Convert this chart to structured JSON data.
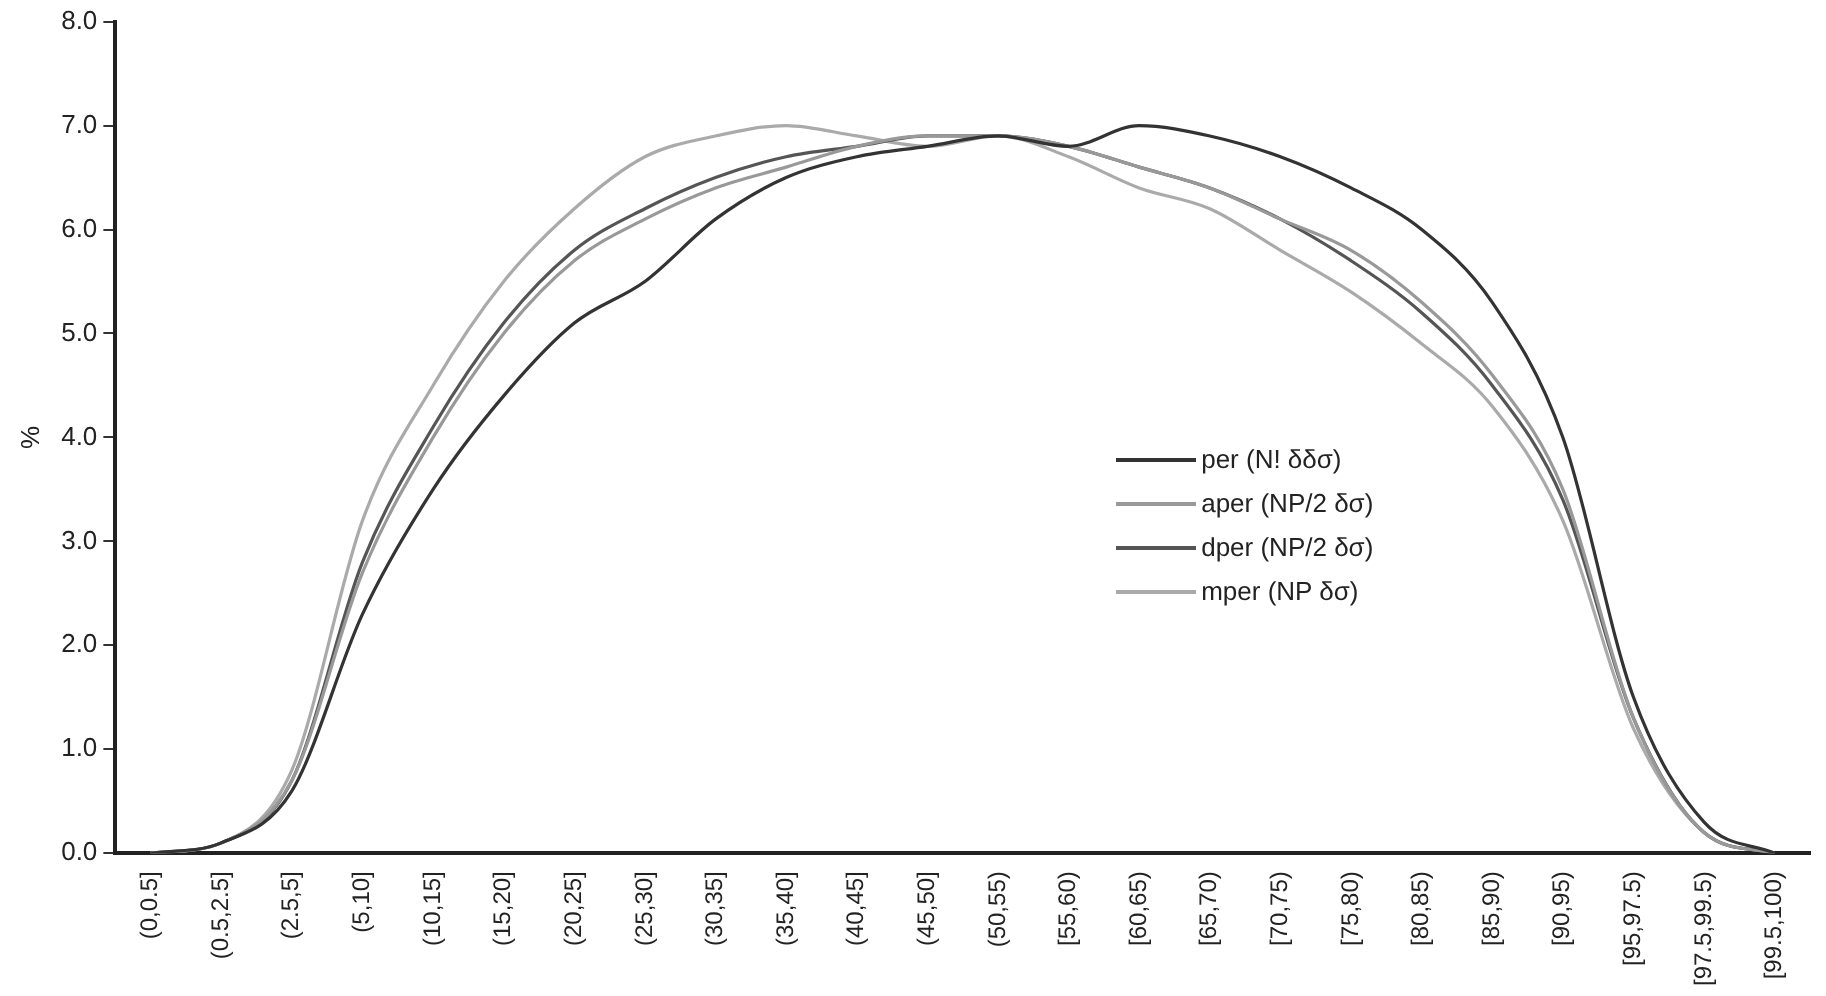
{
  "chart_data": {
    "type": "line",
    "ylabel": "%",
    "categories": [
      "(0,0.5]",
      "(0.5,2.5]",
      "(2.5,5]",
      "(5,10]",
      "(10,15]",
      "(15,20]",
      "(20,25]",
      "(25,30]",
      "(30,35]",
      "(35,40]",
      "(40,45]",
      "(45,50]",
      "(50,55)",
      "[55,60)",
      "[60,65)",
      "[65,70)",
      "[70,75)",
      "[75,80)",
      "[80,85)",
      "[85,90)",
      "[90,95)",
      "[95,97.5)",
      "[97.5,99.5)",
      "[99.5,100)"
    ],
    "series": [
      {
        "name": "per (N! δδσ)",
        "color": "#333333",
        "values": [
          0,
          0.1,
          0.6,
          2.3,
          3.5,
          4.4,
          5.1,
          5.5,
          6.1,
          6.5,
          6.7,
          6.8,
          6.9,
          6.8,
          7.0,
          6.9,
          6.7,
          6.4,
          6.0,
          5.3,
          4.0,
          1.5,
          0.3,
          0
        ]
      },
      {
        "name": "aper (NP/2 δσ)",
        "color": "#999999",
        "values": [
          0,
          0.1,
          0.7,
          2.7,
          4.0,
          5.0,
          5.7,
          6.1,
          6.4,
          6.6,
          6.8,
          6.9,
          6.9,
          6.8,
          6.6,
          6.4,
          6.1,
          5.8,
          5.3,
          4.6,
          3.5,
          1.3,
          0.2,
          0
        ]
      },
      {
        "name": "dper (NP/2 δσ)",
        "color": "#555555",
        "values": [
          0,
          0.1,
          0.7,
          2.8,
          4.1,
          5.1,
          5.8,
          6.2,
          6.5,
          6.7,
          6.8,
          6.9,
          6.9,
          6.8,
          6.6,
          6.4,
          6.1,
          5.7,
          5.2,
          4.5,
          3.4,
          1.3,
          0.2,
          0
        ]
      },
      {
        "name": "mper (NP δσ)",
        "color": "#aaaaaa",
        "values": [
          0,
          0.1,
          0.8,
          3.2,
          4.5,
          5.5,
          6.2,
          6.7,
          6.9,
          7.0,
          6.9,
          6.8,
          6.9,
          6.7,
          6.4,
          6.2,
          5.8,
          5.4,
          4.9,
          4.3,
          3.2,
          1.2,
          0.2,
          0
        ]
      }
    ],
    "ylim": [
      0,
      8
    ],
    "yticks": [
      {
        "value": 0,
        "label": "0.0"
      },
      {
        "value": 1,
        "label": "1.0"
      },
      {
        "value": 2,
        "label": "2.0"
      },
      {
        "value": 3,
        "label": "3.0"
      },
      {
        "value": 4,
        "label": "4.0"
      },
      {
        "value": 5,
        "label": "5.0"
      },
      {
        "value": 6,
        "label": "6.0"
      },
      {
        "value": 7,
        "label": "7.0"
      },
      {
        "value": 8,
        "label": "8.0"
      }
    ],
    "grid": false,
    "legend": "right",
    "marker": "none",
    "line_style": "solid"
  }
}
